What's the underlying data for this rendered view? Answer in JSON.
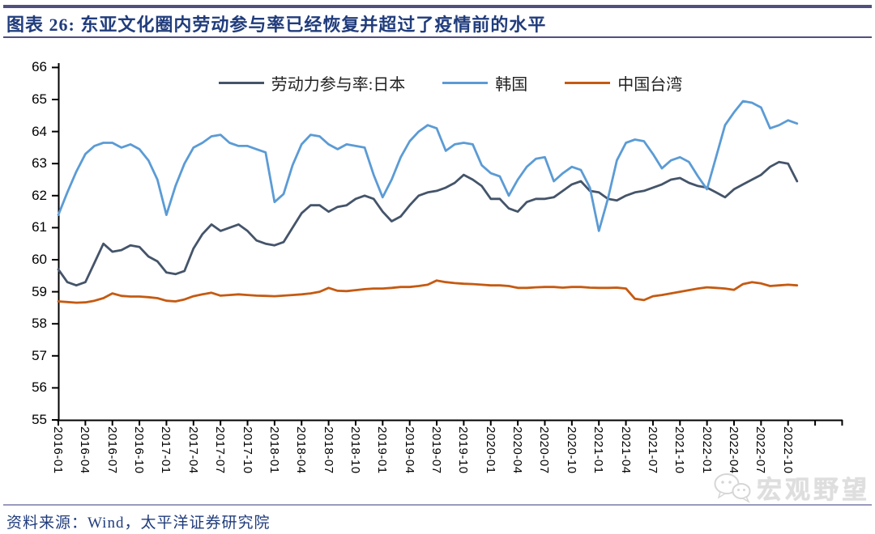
{
  "header": {
    "title": "图表 26:  东亚文化圈内劳动参与率已经恢复并超过了疫情前的水平"
  },
  "footer": {
    "source": "资料来源：Wind，太平洋证券研究院",
    "watermark": "宏观野望"
  },
  "colors": {
    "japan": "#44546A",
    "korea": "#5B9BD5",
    "taiwan": "#C55A11",
    "title_text": "#203C7C",
    "rule_dark": "#50507E",
    "rule_light": "#9A9ABD",
    "axis": "#000000",
    "watermark_gray": "#D3D3D3"
  },
  "chart_data": {
    "type": "line",
    "title": "东亚文化圈内劳动参与率已经恢复并超过了疫情前的水平",
    "xlabel": "",
    "ylabel": "",
    "frequency": "monthly",
    "x_start": "2016-01",
    "x_end": "2022-11",
    "ylim": [
      55,
      66
    ],
    "grid": false,
    "legend_position": "top-center",
    "y_ticks": [
      55,
      56,
      57,
      58,
      59,
      60,
      61,
      62,
      63,
      64,
      65,
      66
    ],
    "x_tick_labels": [
      "2016-01",
      "2016-04",
      "2016-07",
      "2016-10",
      "2017-01",
      "2017-04",
      "2017-07",
      "2017-10",
      "2018-01",
      "2018-04",
      "2018-07",
      "2018-10",
      "2019-01",
      "2019-04",
      "2019-07",
      "2019-10",
      "2020-01",
      "2020-04",
      "2020-07",
      "2020-10",
      "2021-01",
      "2021-04",
      "2021-07",
      "2021-10",
      "2022-01",
      "2022-04",
      "2022-07",
      "2022-10"
    ],
    "series": [
      {
        "name": "劳动力参与率:日本",
        "color": "#44546A",
        "values": [
          59.7,
          59.3,
          59.2,
          59.3,
          59.9,
          60.5,
          60.25,
          60.3,
          60.45,
          60.4,
          60.1,
          59.95,
          59.6,
          59.55,
          59.65,
          60.35,
          60.8,
          61.1,
          60.9,
          61.0,
          61.1,
          60.9,
          60.6,
          60.5,
          60.45,
          60.55,
          61.0,
          61.45,
          61.7,
          61.7,
          61.5,
          61.65,
          61.7,
          61.9,
          62.0,
          61.9,
          61.5,
          61.2,
          61.35,
          61.7,
          62.0,
          62.1,
          62.15,
          62.25,
          62.4,
          62.65,
          62.5,
          62.3,
          61.9,
          61.9,
          61.6,
          61.5,
          61.8,
          61.9,
          61.9,
          61.95,
          62.15,
          62.35,
          62.45,
          62.15,
          62.1,
          61.9,
          61.85,
          62.0,
          62.1,
          62.15,
          62.25,
          62.35,
          62.5,
          62.55,
          62.4,
          62.3,
          62.25,
          62.1,
          61.95,
          62.2,
          62.35,
          62.5,
          62.65,
          62.9,
          63.05,
          63.0,
          62.45
        ]
      },
      {
        "name": "韩国",
        "color": "#5B9BD5",
        "values": [
          61.4,
          62.1,
          62.75,
          63.3,
          63.55,
          63.65,
          63.65,
          63.5,
          63.6,
          63.45,
          63.1,
          62.5,
          61.4,
          62.3,
          63.0,
          63.5,
          63.65,
          63.85,
          63.9,
          63.65,
          63.55,
          63.55,
          63.45,
          63.35,
          61.8,
          62.05,
          62.95,
          63.6,
          63.9,
          63.85,
          63.6,
          63.45,
          63.6,
          63.55,
          63.5,
          62.65,
          61.95,
          62.5,
          63.2,
          63.7,
          64.0,
          64.2,
          64.1,
          63.4,
          63.6,
          63.65,
          63.6,
          62.95,
          62.7,
          62.6,
          62.0,
          62.5,
          62.9,
          63.15,
          63.2,
          62.45,
          62.7,
          62.9,
          62.8,
          62.25,
          60.9,
          61.9,
          63.1,
          63.65,
          63.75,
          63.7,
          63.3,
          62.85,
          63.1,
          63.2,
          63.05,
          62.6,
          62.2,
          63.2,
          64.2,
          64.6,
          64.95,
          64.9,
          64.75,
          64.1,
          64.2,
          64.35,
          64.25
        ]
      },
      {
        "name": "中国台湾",
        "color": "#C55A11",
        "values": [
          58.7,
          58.68,
          58.66,
          58.67,
          58.72,
          58.8,
          58.95,
          58.87,
          58.85,
          58.85,
          58.83,
          58.8,
          58.72,
          58.7,
          58.76,
          58.86,
          58.92,
          58.97,
          58.88,
          58.9,
          58.92,
          58.9,
          58.88,
          58.87,
          58.86,
          58.88,
          58.9,
          58.92,
          58.95,
          59.0,
          59.12,
          59.03,
          59.02,
          59.05,
          59.08,
          59.1,
          59.1,
          59.12,
          59.15,
          59.15,
          59.18,
          59.22,
          59.35,
          59.3,
          59.27,
          59.25,
          59.24,
          59.22,
          59.2,
          59.2,
          59.18,
          59.12,
          59.12,
          59.14,
          59.15,
          59.15,
          59.13,
          59.15,
          59.15,
          59.13,
          59.12,
          59.12,
          59.13,
          59.1,
          58.78,
          58.74,
          58.86,
          58.9,
          58.95,
          59.0,
          59.05,
          59.1,
          59.14,
          59.12,
          59.1,
          59.06,
          59.24,
          59.3,
          59.26,
          59.18,
          59.2,
          59.22,
          59.2
        ]
      }
    ]
  }
}
